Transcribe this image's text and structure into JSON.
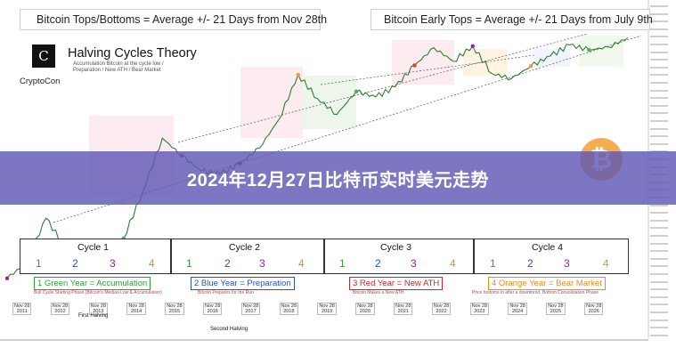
{
  "legend_left": {
    "text": "Bitcoin Tops/Bottoms = Average +/- 21 Days from Nov 28th",
    "dot_colors": [
      "#4caf50",
      "#e53935",
      "#8e24aa"
    ]
  },
  "legend_right": {
    "text": "Bitcoin  Early Tops = Average +/- 21 Days from July 9th",
    "dot_colors": [
      "#f29a38",
      "#8e24aa"
    ]
  },
  "theory": {
    "title": "Halving Cycles Theory",
    "subtitle": "Accumulation Bitcoin at the cycle low / Preparation / New ATH / Bear Market"
  },
  "brand": {
    "logo_letter": "C",
    "name": "CryptoCon"
  },
  "banner": {
    "text": "2024年12月27日比特币实时美元走势"
  },
  "coin": {
    "symbol": "₿"
  },
  "cycles": [
    {
      "title": "Cycle 1",
      "years": [
        "1",
        "2",
        "3",
        "4"
      ]
    },
    {
      "title": "Cycle 2",
      "years": [
        "1",
        "2",
        "3",
        "4"
      ]
    },
    {
      "title": "Cycle 3",
      "years": [
        "1",
        "2",
        "3",
        "4"
      ]
    },
    {
      "title": "Cycle 4",
      "years": [
        "1",
        "2",
        "3",
        "4"
      ]
    }
  ],
  "year_labels": {
    "green": "1 Green Year = Accumulation",
    "blue": "2 Blue Year = Preparation",
    "red": "3 Red Year = New ATH",
    "orange": "4 Orange Year = Bear Market"
  },
  "year_colors": {
    "green": "#2e9e3a",
    "blue": "#2a4fc9",
    "red": "#c62828",
    "orange": "#ef8a16"
  },
  "year_notes": {
    "green": "Bull Cycle Starting Phase (Bitcoin's Median Low & Accumulation)",
    "blue": "Bitcoin Prepares for the Run",
    "red": "Bitcoin Makes a New ATH",
    "orange": "Price bottoms in after a downtrend. Bottom Consolidation Phase"
  },
  "top_dates": [
    {
      "label": "Nov 28\n2011"
    },
    {
      "label": "Nov 28\n2012"
    },
    {
      "label": "Nov 28\n2013"
    },
    {
      "label": "Nov 28\n2014"
    },
    {
      "label": "Nov 28\n2015"
    },
    {
      "label": "Nov 28\n2016"
    },
    {
      "label": "Nov 28\n2017"
    },
    {
      "label": "Nov 28\n2018"
    },
    {
      "label": "Nov 28\n2019"
    },
    {
      "label": "Nov 28\n2020"
    },
    {
      "label": "Nov 28\n2021"
    },
    {
      "label": "Nov 28\n2022"
    },
    {
      "label": "Nov 28\n2023"
    },
    {
      "label": "Nov 28\n2024"
    },
    {
      "label": "Nov 28\n2025"
    },
    {
      "label": "Nov 28\n2026"
    }
  ],
  "halvings": {
    "first": "First Halving",
    "second": "Second Halving"
  },
  "chart_data": {
    "type": "line",
    "title": "",
    "xlabel": "",
    "ylabel": "",
    "log_scale": true,
    "series": [
      {
        "values": [
          2,
          4,
          30,
          8,
          5,
          6,
          12,
          100,
          1100,
          500,
          250,
          220,
          350,
          700,
          2500,
          19000,
          6500,
          3200,
          9000,
          7000,
          11000,
          29000,
          64000,
          35000,
          69000,
          20000,
          16000,
          28000,
          44000,
          73000,
          58000,
          66000,
          100000
        ]
      }
    ]
  }
}
